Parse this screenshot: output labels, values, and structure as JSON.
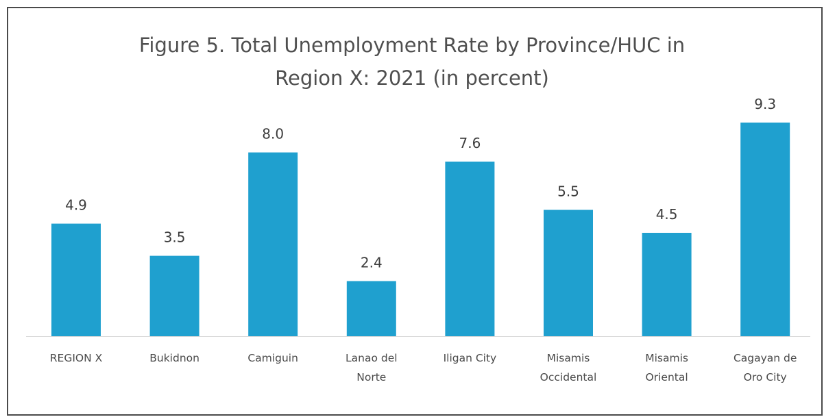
{
  "chart_data": {
    "type": "bar",
    "title": "Figure 5. Total Unemployment Rate by Province/HUC in\nRegion X: 2021 (in percent)",
    "categories": [
      [
        "REGION X"
      ],
      [
        "Bukidnon"
      ],
      [
        "Camiguin"
      ],
      [
        "Lanao del",
        "Norte"
      ],
      [
        "Iligan City"
      ],
      [
        "Misamis",
        "Occidental"
      ],
      [
        "Misamis",
        "Oriental"
      ],
      [
        "Cagayan de",
        "Oro City"
      ]
    ],
    "values": [
      4.9,
      3.5,
      8.0,
      2.4,
      7.6,
      5.5,
      4.5,
      9.3
    ],
    "data_labels": [
      "4.9",
      "3.5",
      "8.0",
      "2.4",
      "7.6",
      "5.5",
      "4.5",
      "9.3"
    ],
    "ylim": [
      0,
      10
    ],
    "bar_color": "#1fa0cf",
    "grid": false,
    "legend": "none"
  }
}
